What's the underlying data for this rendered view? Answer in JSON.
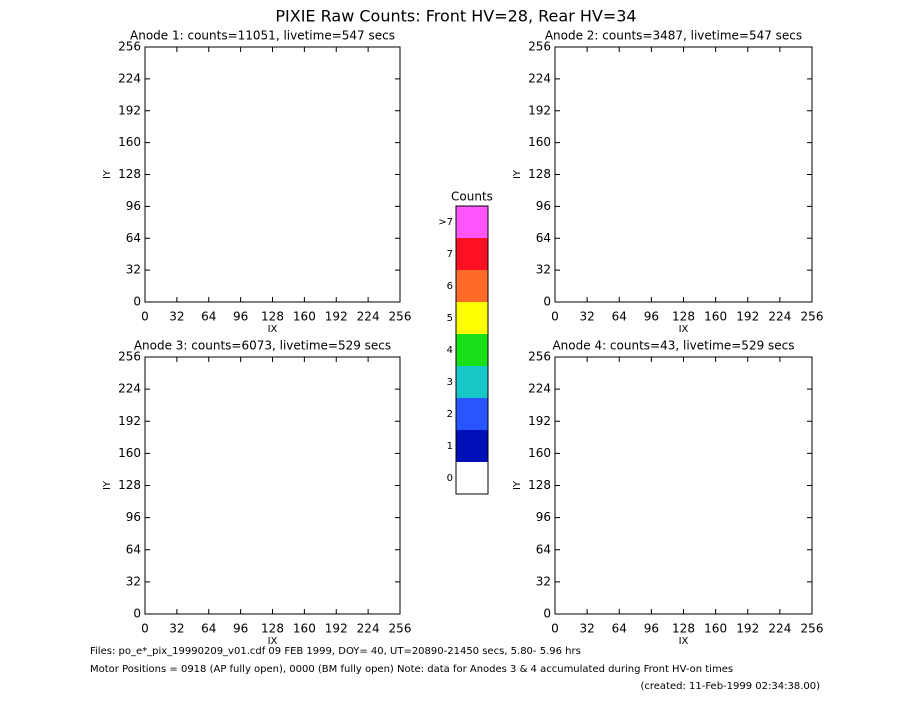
{
  "title": "PIXIE Raw Counts:  Front HV=28, Rear HV=34",
  "chart_data": [
    {
      "type": "heatmap",
      "title": "Anode 1: counts=11051, livetime=547 secs",
      "x_label": "IX",
      "y_label": "IY",
      "xlim": [
        0,
        256
      ],
      "ylim": [
        0,
        256
      ],
      "xticks": [
        0,
        32,
        64,
        96,
        128,
        160,
        192,
        224,
        256
      ],
      "yticks": [
        0,
        32,
        64,
        96,
        128,
        160,
        192,
        224,
        256
      ]
    },
    {
      "type": "heatmap",
      "title": "Anode 2: counts=3487, livetime=547 secs",
      "x_label": "IX",
      "y_label": "IY",
      "xlim": [
        0,
        256
      ],
      "ylim": [
        0,
        256
      ],
      "xticks": [
        0,
        32,
        64,
        96,
        128,
        160,
        192,
        224,
        256
      ],
      "yticks": [
        0,
        32,
        64,
        96,
        128,
        160,
        192,
        224,
        256
      ]
    },
    {
      "type": "heatmap",
      "title": "Anode 3: counts=6073, livetime=529 secs",
      "x_label": "IX",
      "y_label": "IY",
      "xlim": [
        0,
        256
      ],
      "ylim": [
        0,
        256
      ],
      "xticks": [
        0,
        32,
        64,
        96,
        128,
        160,
        192,
        224,
        256
      ],
      "yticks": [
        0,
        32,
        64,
        96,
        128,
        160,
        192,
        224,
        256
      ]
    },
    {
      "type": "heatmap",
      "title": "Anode 4: counts=43, livetime=529 secs",
      "x_label": "IX",
      "y_label": "IY",
      "xlim": [
        0,
        256
      ],
      "ylim": [
        0,
        256
      ],
      "xticks": [
        0,
        32,
        64,
        96,
        128,
        160,
        192,
        224,
        256
      ],
      "yticks": [
        0,
        32,
        64,
        96,
        128,
        160,
        192,
        224,
        256
      ]
    }
  ],
  "colorbar": {
    "title": "Counts",
    "labels": [
      "0",
      "1",
      "2",
      "3",
      "4",
      "5",
      "6",
      "7",
      ">7"
    ],
    "colors": [
      "#ffffff",
      "#0010b8",
      "#2855ff",
      "#18c8c8",
      "#18e018",
      "#ffff00",
      "#ff6a28",
      "#ff1020",
      "#ff55ff"
    ]
  },
  "footer": {
    "files": "Files: po_e*_pix_19990209_v01.cdf   09 FEB 1999, DOY= 40, UT=20890-21450 secs,  5.80- 5.96 hrs",
    "motor": "Motor Positions = 0918 (AP fully open), 0000 (BM fully open)    Note: data for Anodes 3 & 4 accumulated during Front HV-on times",
    "created": "(created: 11-Feb-1999 02:34:38.00)"
  }
}
